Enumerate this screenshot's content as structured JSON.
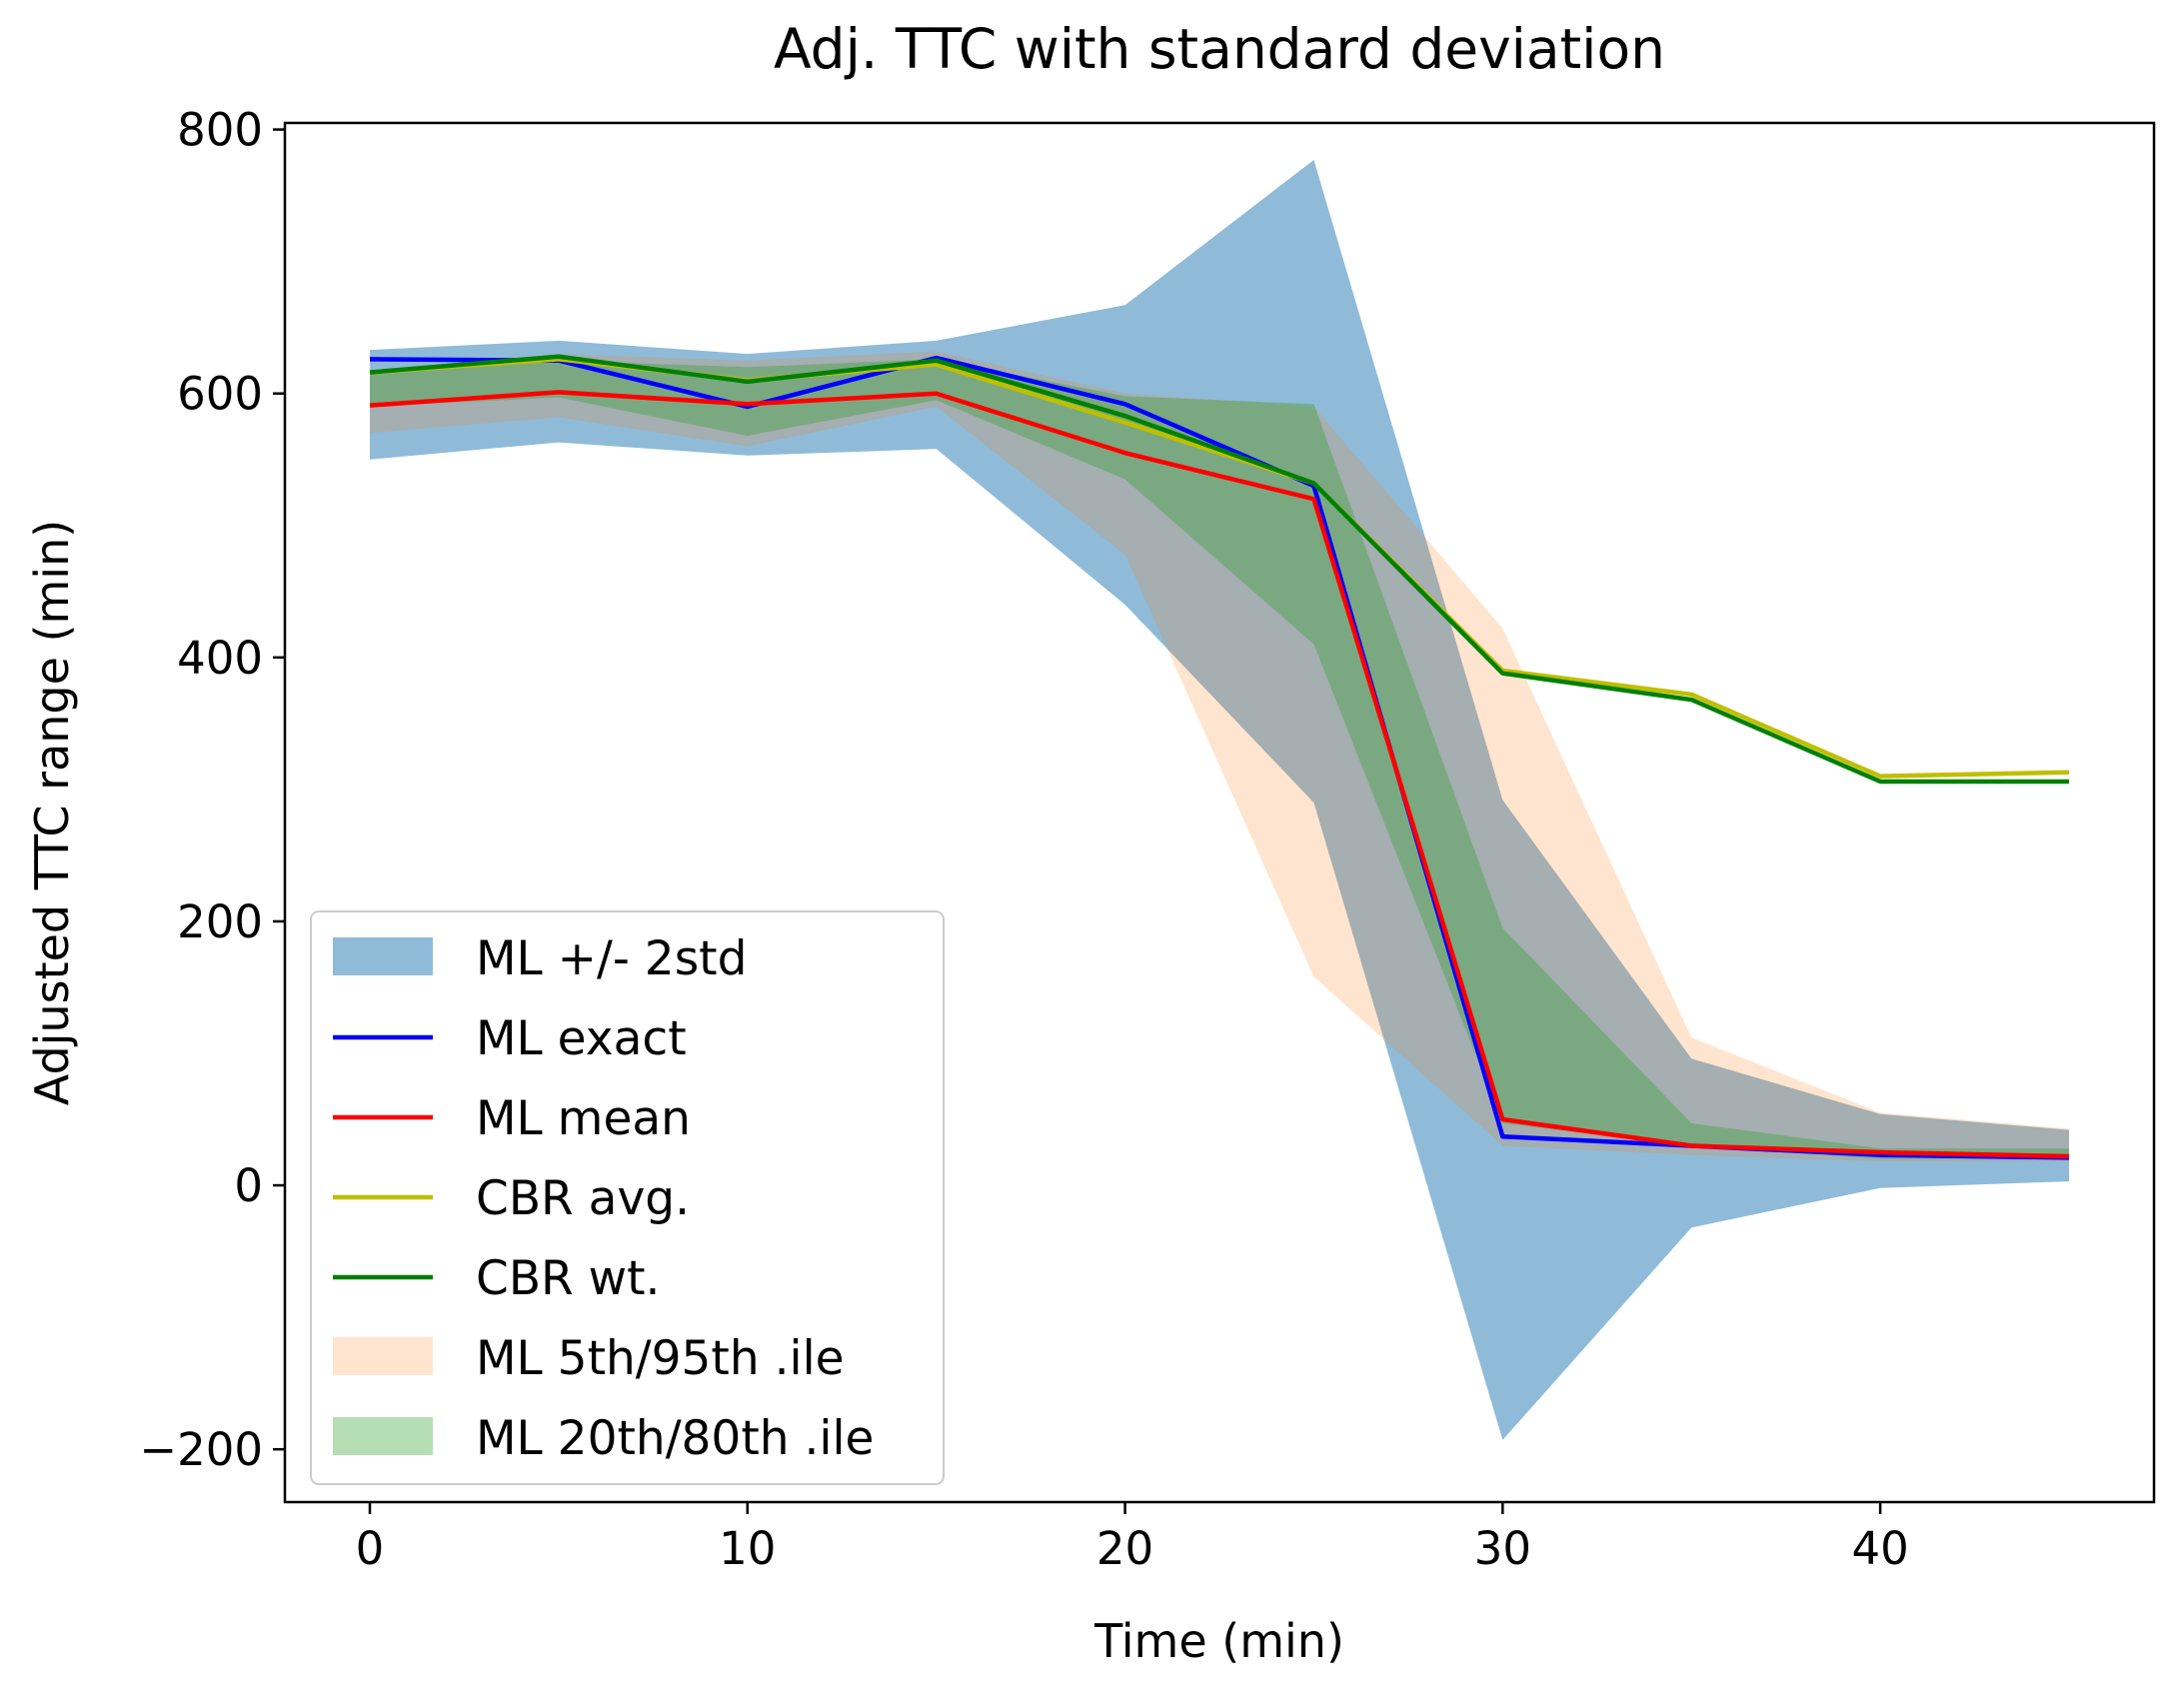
{
  "chart_data": {
    "type": "line",
    "title": "Adj. TTC with standard deviation",
    "xlabel": "Time (min)",
    "ylabel": "Adjusted TTC range (min)",
    "xlim": [
      -2.25,
      47.25
    ],
    "ylim": [
      -240,
      805
    ],
    "xticks": [
      0,
      10,
      20,
      30,
      40
    ],
    "yticks": [
      -200,
      0,
      200,
      400,
      600,
      800
    ],
    "xtick_labels": [
      "0",
      "10",
      "20",
      "30",
      "40"
    ],
    "ytick_labels": [
      "−200",
      "0",
      "200",
      "400",
      "600",
      "800"
    ],
    "x": [
      0,
      5,
      10,
      15,
      20,
      25,
      30,
      35,
      40,
      45
    ],
    "bands": [
      {
        "name": "ML +/- 2std",
        "color": "#1f77b4",
        "opacity": 0.5,
        "lower": [
          550,
          563,
          553,
          558,
          440,
          290,
          -193,
          -32,
          -2,
          3
        ],
        "upper": [
          633,
          640,
          630,
          640,
          667,
          777,
          292,
          96,
          54,
          42
        ]
      },
      {
        "name": "ML 5th/95th .ile",
        "color": "#ff7f0e",
        "opacity": 0.2,
        "lower": [
          570,
          582,
          560,
          590,
          478,
          158,
          30,
          23,
          18,
          18
        ],
        "upper": [
          618,
          630,
          625,
          632,
          600,
          590,
          422,
          112,
          55,
          43
        ]
      },
      {
        "name": "ML 20th/80th .ile",
        "color": "#2ca02c",
        "opacity": 0.35,
        "lower": [
          590,
          597,
          568,
          595,
          535,
          410,
          47,
          30,
          20,
          20
        ],
        "upper": [
          614,
          625,
          620,
          626,
          598,
          592,
          195,
          47,
          28,
          28
        ]
      }
    ],
    "series": [
      {
        "name": "ML exact",
        "color": "#0000ff",
        "values": [
          626,
          625,
          590,
          627,
          592,
          530,
          37,
          30,
          23,
          21
        ]
      },
      {
        "name": "ML mean",
        "color": "#ff0000",
        "values": [
          591,
          601,
          592,
          600,
          555,
          520,
          50,
          30,
          25,
          22
        ]
      },
      {
        "name": "CBR avg.",
        "color": "#bfbf00",
        "values": [
          616,
          626,
          610,
          622,
          578,
          532,
          390,
          372,
          310,
          313
        ]
      },
      {
        "name": "CBR wt.",
        "color": "#008000",
        "values": [
          616,
          628,
          609,
          625,
          583,
          532,
          388,
          368,
          306,
          306
        ]
      }
    ],
    "legend": {
      "location": "lower-left",
      "entries": [
        {
          "label": "ML +/- 2std",
          "kind": "patch",
          "color": "#1f77b4",
          "opacity": 0.5
        },
        {
          "label": "ML exact",
          "kind": "line",
          "color": "#0000ff"
        },
        {
          "label": "ML mean",
          "kind": "line",
          "color": "#ff0000"
        },
        {
          "label": "CBR avg.",
          "kind": "line",
          "color": "#bfbf00"
        },
        {
          "label": "CBR wt.",
          "kind": "line",
          "color": "#008000"
        },
        {
          "label": "ML 5th/95th .ile",
          "kind": "patch",
          "color": "#ff7f0e",
          "opacity": 0.2
        },
        {
          "label": "ML 20th/80th .ile",
          "kind": "patch",
          "color": "#2ca02c",
          "opacity": 0.35
        }
      ]
    }
  }
}
